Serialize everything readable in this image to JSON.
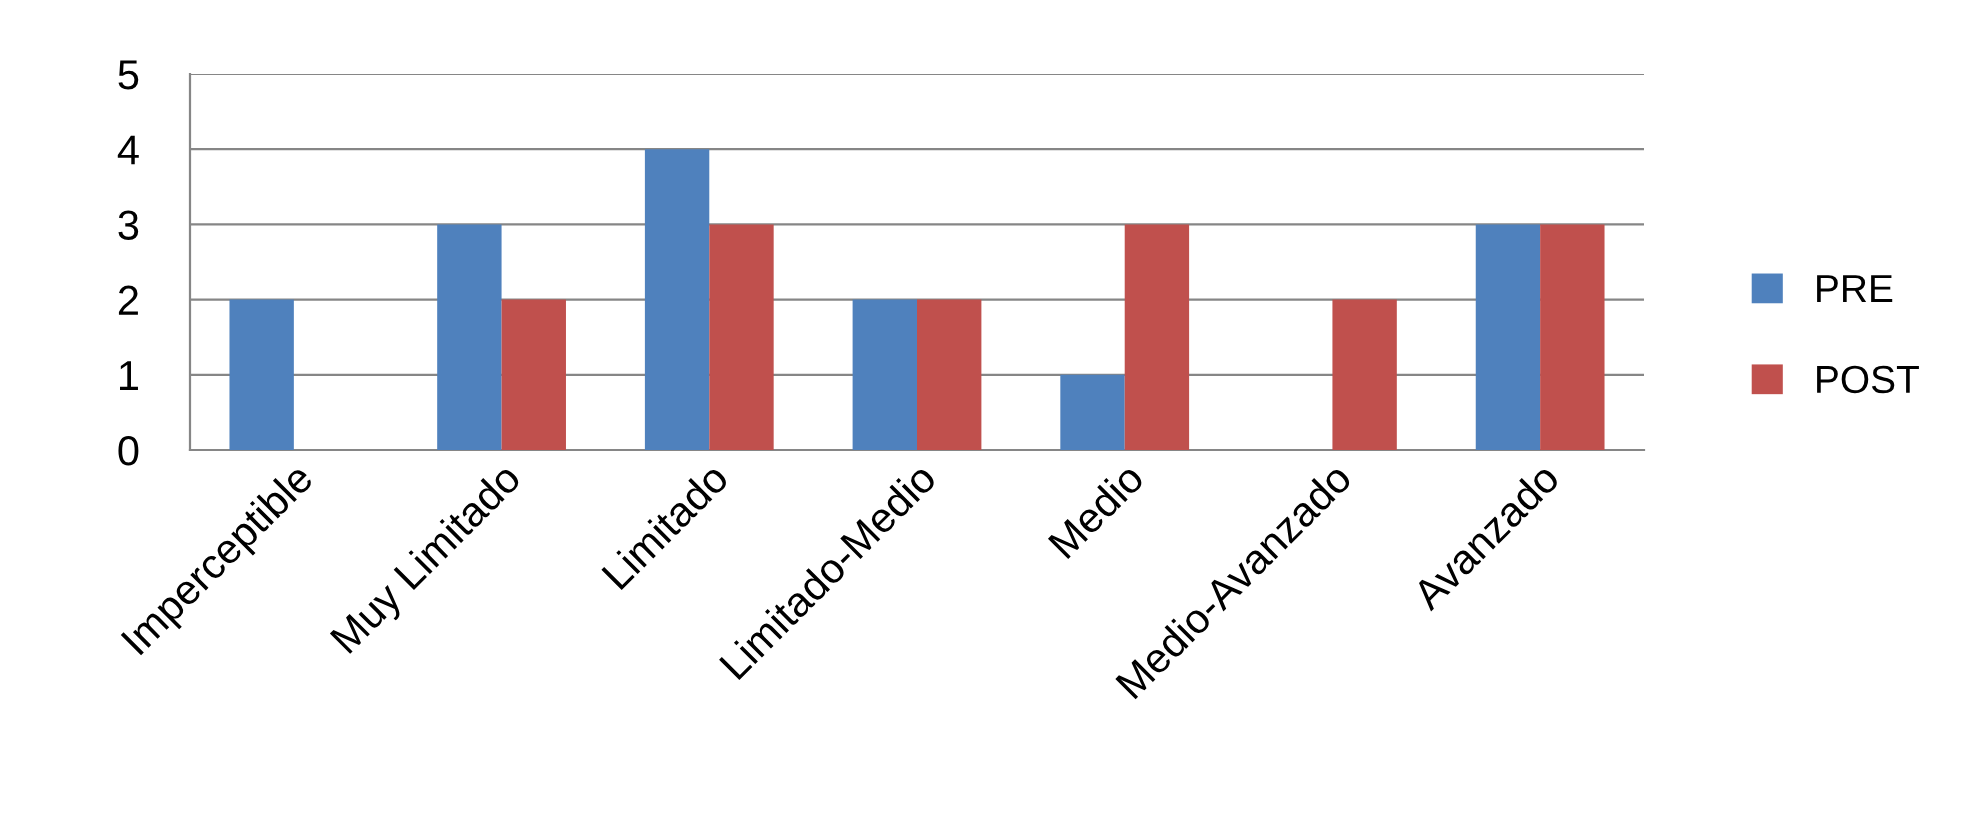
{
  "chart_data": {
    "type": "bar",
    "categories": [
      "Imperceptible",
      "Muy Limitado",
      "Limitado",
      "Limitado-Medio",
      "Medio",
      "Medio-Avanzado",
      "Avanzado"
    ],
    "series": [
      {
        "name": "PRE",
        "color": "#4f81bd",
        "values": [
          2,
          3,
          4,
          2,
          1,
          0,
          3
        ]
      },
      {
        "name": "POST",
        "color": "#c0504d",
        "values": [
          0,
          2,
          3,
          2,
          3,
          2,
          3
        ]
      }
    ],
    "ylim": [
      0,
      5
    ],
    "yticks": [
      0,
      1,
      2,
      3,
      4,
      5
    ],
    "grid": "y",
    "legend": "right"
  }
}
